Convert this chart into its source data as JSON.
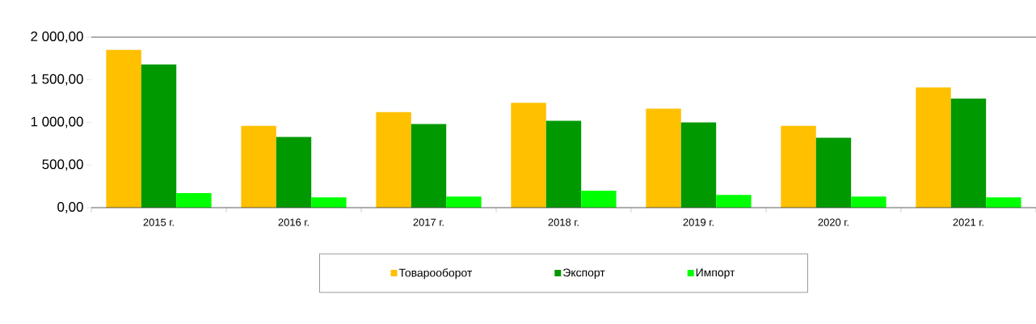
{
  "chart_data": {
    "type": "bar",
    "categories": [
      "2015 г.",
      "2016 г.",
      "2017 г.",
      "2018 г.",
      "2019 г.",
      "2020 г.",
      "2021 г."
    ],
    "series": [
      {
        "name": "Товарооборот",
        "color": "#ffc000",
        "values": [
          1850,
          960,
          1120,
          1230,
          1160,
          960,
          1410
        ]
      },
      {
        "name": "Экспорт",
        "color": "#009900",
        "values": [
          1680,
          830,
          980,
          1020,
          1000,
          820,
          1280
        ]
      },
      {
        "name": "Импорт",
        "color": "#00ff00",
        "values": [
          170,
          120,
          130,
          200,
          150,
          130,
          120
        ]
      }
    ],
    "ylim": [
      0,
      2000
    ],
    "yticks": [
      {
        "value": 0,
        "label": "0,00"
      },
      {
        "value": 500,
        "label": "500,00"
      },
      {
        "value": 1000,
        "label": "1 000,00"
      },
      {
        "value": 1500,
        "label": "1 500,00"
      },
      {
        "value": 2000,
        "label": "2 000,00"
      }
    ],
    "legend": "bottom"
  }
}
